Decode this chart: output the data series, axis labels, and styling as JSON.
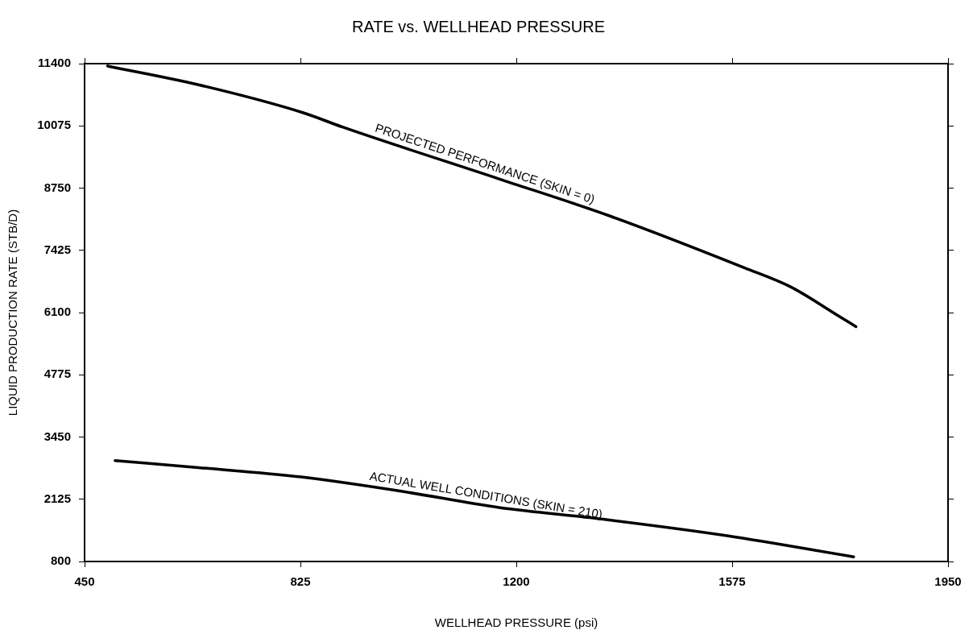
{
  "chart_data": {
    "type": "line",
    "title": "RATE vs. WELLHEAD PRESSURE",
    "xlabel": "WELLHEAD PRESSURE (psi)",
    "ylabel": "LIQUID PRODUCTION RATE (STB/D)",
    "xlim": [
      450,
      1950
    ],
    "xticks": [
      450,
      825,
      1200,
      1575,
      1950
    ],
    "ylim": [
      800,
      11400
    ],
    "yticks": [
      800,
      2125,
      3450,
      4775,
      6100,
      7425,
      8750,
      10075,
      11400
    ],
    "grid": false,
    "legend": false,
    "marker": "none",
    "line_style": "solid",
    "series": [
      {
        "color": "#000000",
        "x": [
          490,
          648,
          831,
          898,
          1169,
          1364,
          1597,
          1676,
          1757,
          1790
        ],
        "values": [
          11350,
          10950,
          10350,
          10050,
          8950,
          8150,
          7050,
          6650,
          6050,
          5800
        ]
      },
      {
        "color": "#000000",
        "x": [
          503,
          648,
          826,
          998,
          1170,
          1351,
          1566,
          1786
        ],
        "values": [
          2950,
          2800,
          2600,
          2300,
          1950,
          1700,
          1350,
          900
        ]
      }
    ],
    "annotations": [
      "PROJECTED PERFORMANCE (SKIN = 0)",
      "ACTUAL WELL CONDITIONS (SKIN = 210)"
    ]
  }
}
